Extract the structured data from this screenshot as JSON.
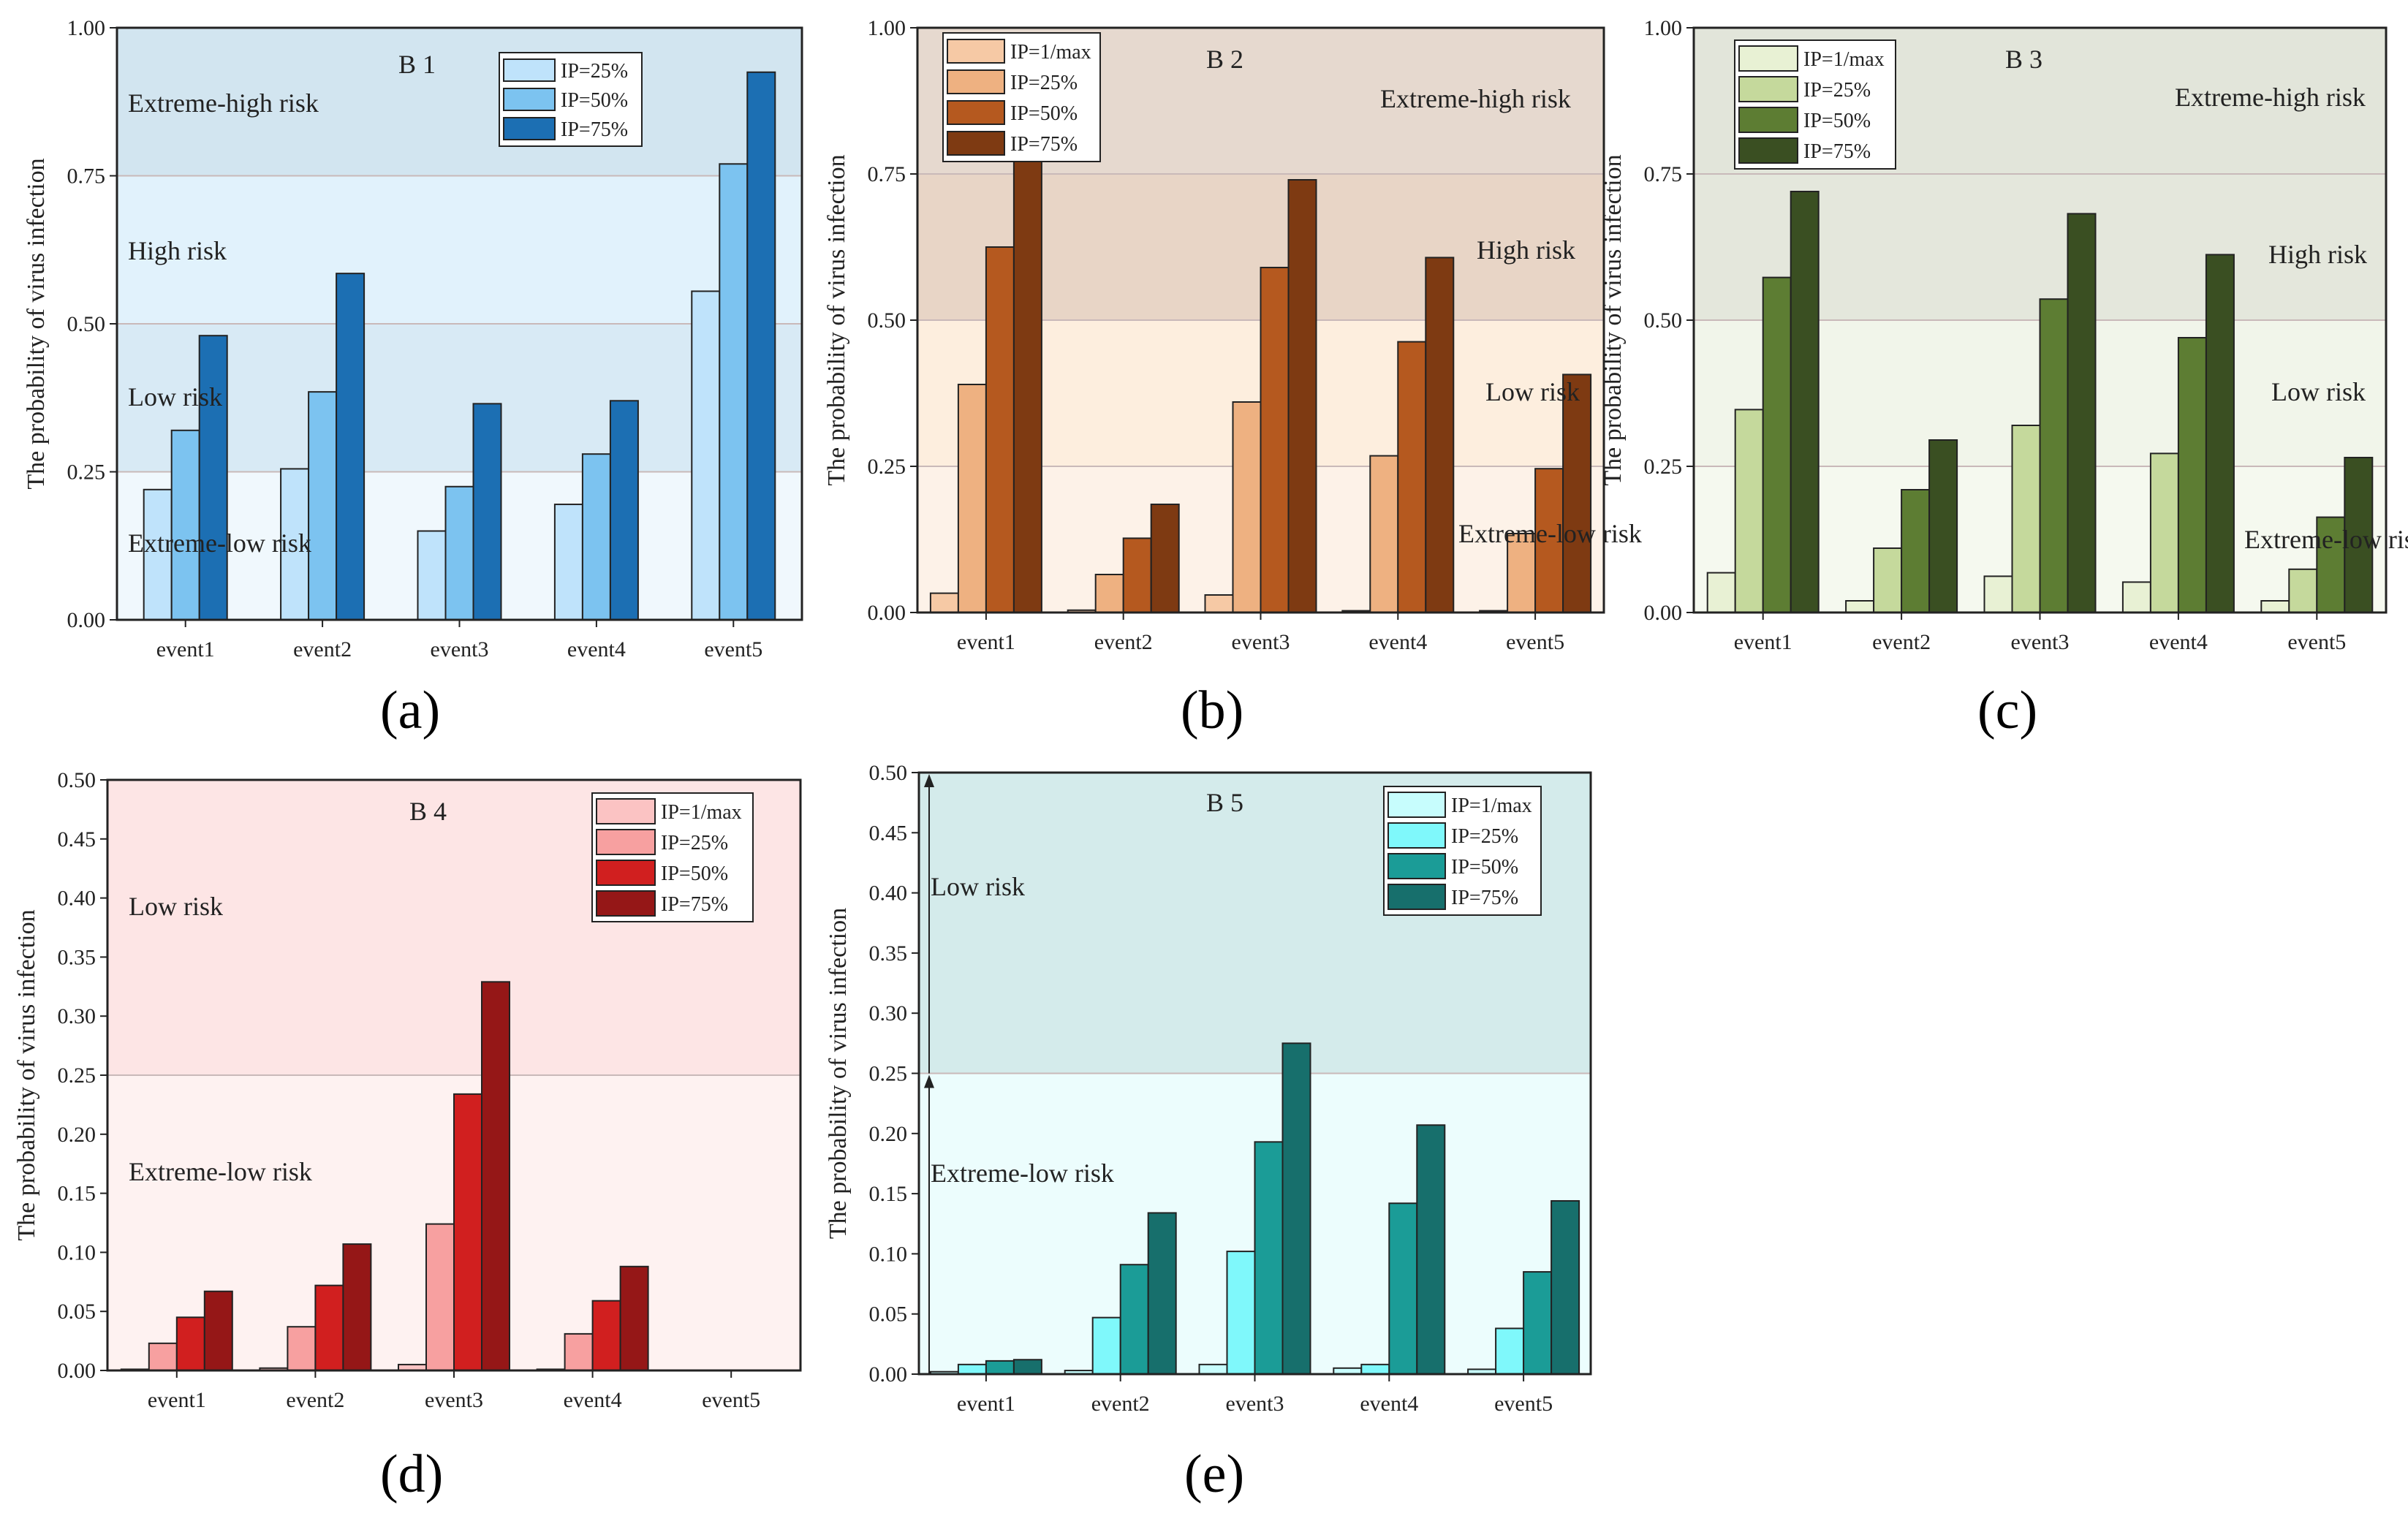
{
  "figure": {
    "ylabel": "The probability of virus infection",
    "categories": [
      "event1",
      "event2",
      "event3",
      "event4",
      "event5"
    ]
  },
  "panel_labels": [
    "(a)",
    "(b)",
    "(c)",
    "(d)",
    "(e)"
  ],
  "chart_data": [
    {
      "type": "bar",
      "title": "B 1",
      "ylabel": "The probability of virus infection",
      "categories": [
        "event1",
        "event2",
        "event3",
        "event4",
        "event5"
      ],
      "ylim": [
        0,
        1
      ],
      "yticks": [
        "0.00",
        "0.25",
        "0.50",
        "0.75",
        "1.00"
      ],
      "series": [
        {
          "name": "IP=25%",
          "color": "#bfe3fb",
          "values": [
            0.22,
            0.255,
            0.15,
            0.195,
            0.555
          ]
        },
        {
          "name": "IP=50%",
          "color": "#7cc3f0",
          "values": [
            0.32,
            0.385,
            0.225,
            0.28,
            0.77
          ]
        },
        {
          "name": "IP=75%",
          "color": "#1c6fb3",
          "values": [
            0.48,
            0.585,
            0.365,
            0.37,
            0.925
          ]
        }
      ],
      "risk_zones": [
        {
          "label": "Extreme-low risk",
          "from": 0,
          "to": 0.25,
          "color": "#f0f8fd"
        },
        {
          "label": "Low risk",
          "from": 0.25,
          "to": 0.5,
          "color": "#d8eaf5"
        },
        {
          "label": "High risk",
          "from": 0.5,
          "to": 0.75,
          "color": "#e1f2fc"
        },
        {
          "label": "Extreme-high risk",
          "from": 0.75,
          "to": 1,
          "color": "#d2e5f0"
        }
      ]
    },
    {
      "type": "bar",
      "title": "B 2",
      "ylabel": "The probability of virus infection",
      "categories": [
        "event1",
        "event2",
        "event3",
        "event4",
        "event5"
      ],
      "ylim": [
        0,
        1
      ],
      "yticks": [
        "0.00",
        "0.25",
        "0.50",
        "0.75",
        "1.00"
      ],
      "series": [
        {
          "name": "IP=1/max",
          "color": "#f6c9a5",
          "values": [
            0.033,
            0.004,
            0.03,
            0.003,
            0.003
          ]
        },
        {
          "name": "IP=25%",
          "color": "#eeb181",
          "values": [
            0.39,
            0.065,
            0.36,
            0.268,
            0.135
          ]
        },
        {
          "name": "IP=50%",
          "color": "#b5591f",
          "values": [
            0.625,
            0.127,
            0.59,
            0.463,
            0.246
          ]
        },
        {
          "name": "IP=75%",
          "color": "#7e3a12",
          "values": [
            0.775,
            0.185,
            0.74,
            0.607,
            0.407
          ]
        }
      ],
      "risk_zones": [
        {
          "label": "Extreme-low risk",
          "from": 0,
          "to": 0.25,
          "color": "#fdf2e8"
        },
        {
          "label": "Low risk",
          "from": 0.25,
          "to": 0.5,
          "color": "#fdeede"
        },
        {
          "label": "High risk",
          "from": 0.5,
          "to": 0.75,
          "color": "#e8d5c6"
        },
        {
          "label": "Extreme-high risk",
          "from": 0.75,
          "to": 1,
          "color": "#e6d9cf"
        }
      ]
    },
    {
      "type": "bar",
      "title": "B 3",
      "ylabel": "The probability of virus infection",
      "categories": [
        "event1",
        "event2",
        "event3",
        "event4",
        "event5"
      ],
      "ylim": [
        0,
        1
      ],
      "yticks": [
        "0.00",
        "0.25",
        "0.50",
        "0.75",
        "1.00"
      ],
      "series": [
        {
          "name": "IP=1/max",
          "color": "#e8f1d4",
          "values": [
            0.068,
            0.02,
            0.062,
            0.052,
            0.02
          ]
        },
        {
          "name": "IP=25%",
          "color": "#c5d99c",
          "values": [
            0.347,
            0.11,
            0.32,
            0.272,
            0.074
          ]
        },
        {
          "name": "IP=50%",
          "color": "#5d7d33",
          "values": [
            0.573,
            0.21,
            0.536,
            0.47,
            0.163
          ]
        },
        {
          "name": "IP=75%",
          "color": "#3a4f22",
          "values": [
            0.72,
            0.295,
            0.682,
            0.612,
            0.265
          ]
        }
      ],
      "risk_zones": [
        {
          "label": "Extreme-low risk",
          "from": 0,
          "to": 0.25,
          "color": "#f5f9ef"
        },
        {
          "label": "Low risk",
          "from": 0.25,
          "to": 0.5,
          "color": "#f1f5ea"
        },
        {
          "label": "High risk",
          "from": 0.5,
          "to": 0.75,
          "color": "#e4e7dc"
        },
        {
          "label": "Extreme-high risk",
          "from": 0.75,
          "to": 1,
          "color": "#e2e5da"
        }
      ]
    },
    {
      "type": "bar",
      "title": "B 4",
      "ylabel": "The probability of virus infection",
      "categories": [
        "event1",
        "event2",
        "event3",
        "event4",
        "event5"
      ],
      "ylim": [
        0,
        0.5
      ],
      "yticks": [
        "0.00",
        "0.05",
        "0.10",
        "0.15",
        "0.20",
        "0.25",
        "0.30",
        "0.35",
        "0.40",
        "0.45",
        "0.50"
      ],
      "series": [
        {
          "name": "IP=1/max",
          "color": "#fbc3c3",
          "values": [
            0.001,
            0.002,
            0.005,
            0.001,
            0
          ]
        },
        {
          "name": "IP=25%",
          "color": "#f7a0a0",
          "values": [
            0.023,
            0.037,
            0.124,
            0.031,
            0
          ]
        },
        {
          "name": "IP=50%",
          "color": "#d11f1f",
          "values": [
            0.045,
            0.072,
            0.234,
            0.059,
            0
          ]
        },
        {
          "name": "IP=75%",
          "color": "#951717",
          "values": [
            0.067,
            0.107,
            0.329,
            0.088,
            0
          ]
        }
      ],
      "risk_zones": [
        {
          "label": "Extreme-low risk",
          "from": 0,
          "to": 0.25,
          "color": "#fef2f1"
        },
        {
          "label": "Low risk",
          "from": 0.25,
          "to": 0.5,
          "color": "#fde5e5"
        }
      ]
    },
    {
      "type": "bar",
      "title": "B 5",
      "ylabel": "The probability of virus infection",
      "categories": [
        "event1",
        "event2",
        "event3",
        "event4",
        "event5"
      ],
      "ylim": [
        0,
        0.5
      ],
      "yticks": [
        "0.00",
        "0.05",
        "0.10",
        "0.15",
        "0.20",
        "0.25",
        "0.30",
        "0.35",
        "0.40",
        "0.45",
        "0.50"
      ],
      "series": [
        {
          "name": "IP=1/max",
          "color": "#c7fdfd",
          "values": [
            0.002,
            0.003,
            0.008,
            0.005,
            0.004
          ]
        },
        {
          "name": "IP=25%",
          "color": "#7ff8fb",
          "values": [
            0.008,
            0.047,
            0.102,
            0.008,
            0.038
          ]
        },
        {
          "name": "IP=50%",
          "color": "#1b9c97",
          "values": [
            0.011,
            0.091,
            0.193,
            0.142,
            0.085
          ]
        },
        {
          "name": "IP=75%",
          "color": "#176f6c",
          "values": [
            0.012,
            0.134,
            0.275,
            0.207,
            0.144
          ]
        }
      ],
      "risk_zones": [
        {
          "label": "Extreme-low risk",
          "from": 0,
          "to": 0.25,
          "color": "#ecfdfd"
        },
        {
          "label": "Low risk",
          "from": 0.25,
          "to": 0.5,
          "color": "#d4ebeb"
        }
      ]
    }
  ]
}
